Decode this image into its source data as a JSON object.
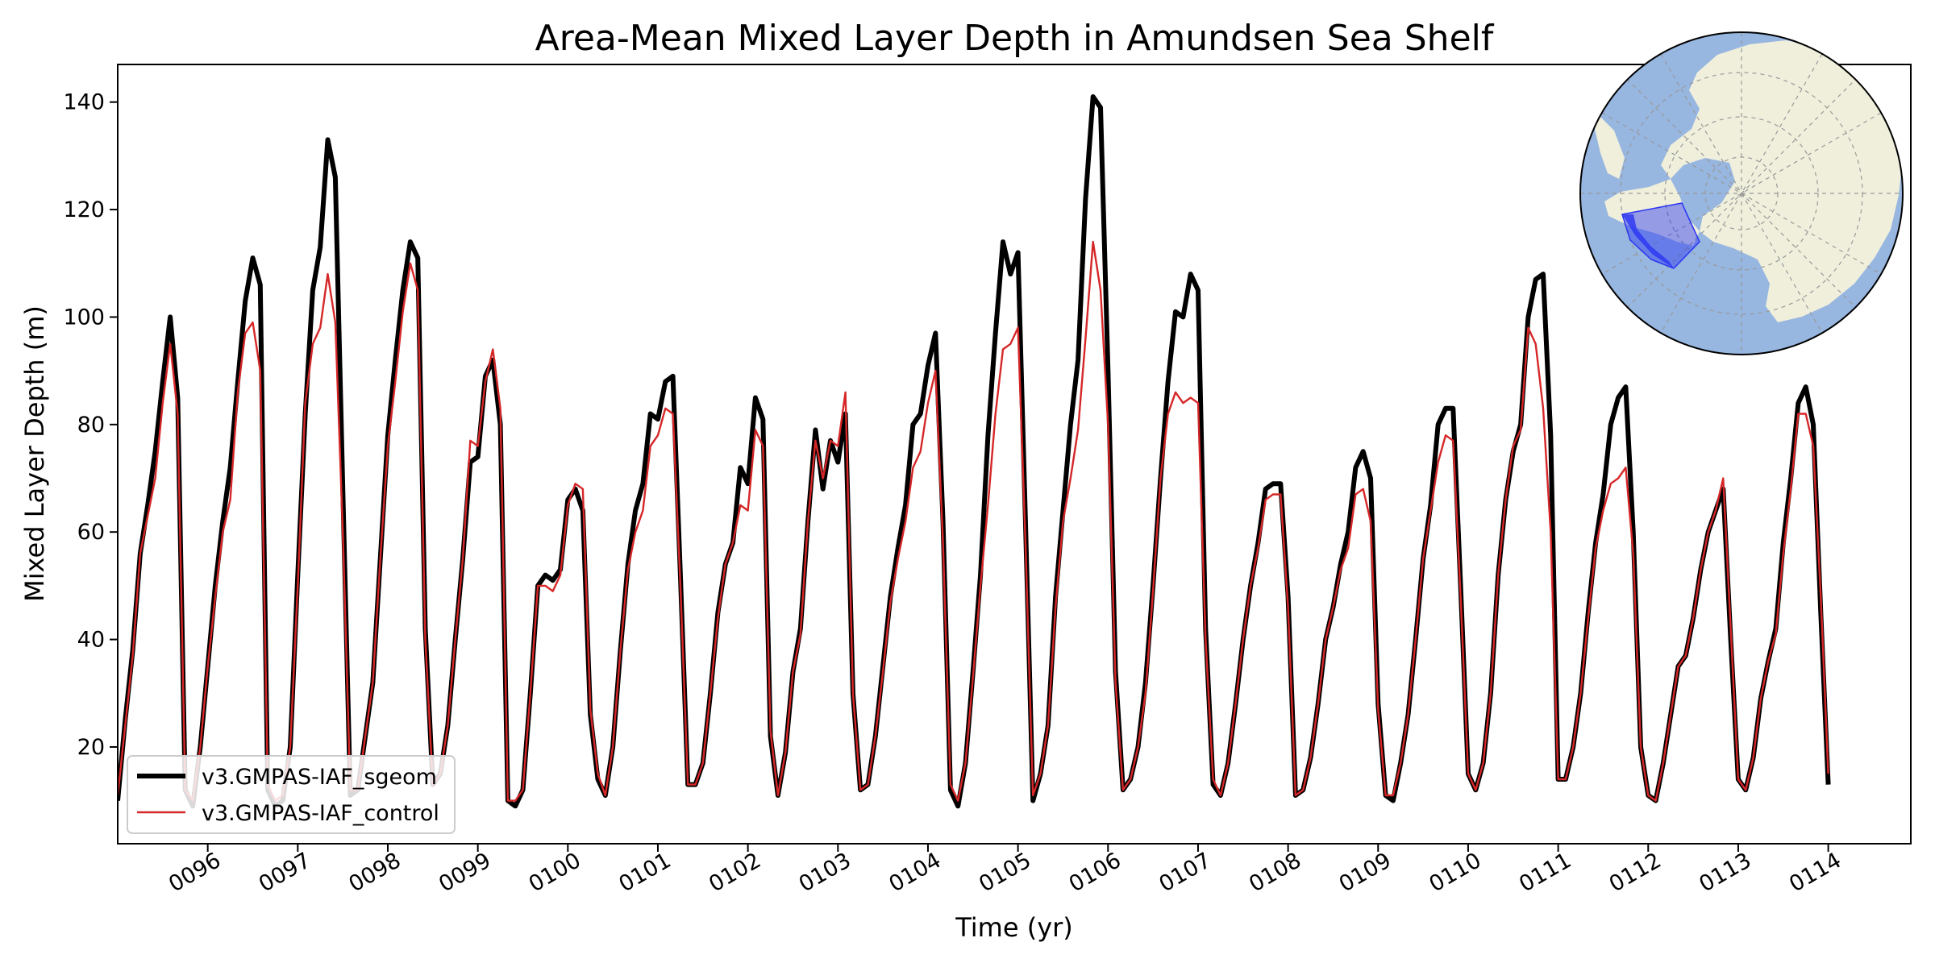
{
  "chart_data": {
    "type": "line",
    "title": "Area-Mean Mixed Layer Depth in Amundsen Sea Shelf",
    "xlabel": "Time (yr)",
    "ylabel": "Mixed Layer Depth (m)",
    "xlim": [
      95.0,
      114.917
    ],
    "ylim": [
      2,
      147
    ],
    "x_start_year": 95,
    "points_per_year": 12,
    "x_ticks": [
      96,
      97,
      98,
      99,
      100,
      101,
      102,
      103,
      104,
      105,
      106,
      107,
      108,
      109,
      110,
      111,
      112,
      113,
      114
    ],
    "x_tick_labels": [
      "0096",
      "0097",
      "0098",
      "0099",
      "0100",
      "0101",
      "0102",
      "0103",
      "0104",
      "0105",
      "0106",
      "0107",
      "0108",
      "0109",
      "0110",
      "0111",
      "0112",
      "0113",
      "0114"
    ],
    "y_ticks": [
      20,
      40,
      60,
      80,
      100,
      120,
      140
    ],
    "y_tick_labels": [
      "20",
      "40",
      "60",
      "80",
      "100",
      "120",
      "140"
    ],
    "grid": false,
    "legend_position": "lower-left",
    "series": [
      {
        "name": "v3.GMPAS-IAF_sgeom",
        "color": "#000000",
        "values": [
          10,
          25,
          38,
          56,
          65,
          75,
          88,
          100,
          85,
          12,
          9,
          20,
          35,
          50,
          62,
          72,
          88,
          103,
          111,
          106,
          12,
          9,
          10,
          20,
          52,
          82,
          105,
          113,
          133,
          126,
          68,
          11,
          12,
          22,
          32,
          55,
          78,
          92,
          105,
          114,
          111,
          42,
          13,
          15,
          24,
          40,
          55,
          73,
          74,
          89,
          92,
          80,
          10,
          9,
          12,
          30,
          50,
          52,
          51,
          53,
          66,
          68,
          64,
          26,
          14,
          11,
          20,
          38,
          54,
          64,
          69,
          82,
          81,
          88,
          89,
          52,
          13,
          13,
          17,
          30,
          45,
          54,
          58,
          72,
          69,
          85,
          81,
          22,
          11,
          19,
          34,
          42,
          62,
          79,
          68,
          77,
          73,
          82,
          30,
          12,
          13,
          22,
          35,
          48,
          57,
          65,
          80,
          82,
          91,
          97,
          62,
          12,
          9,
          17,
          34,
          52,
          78,
          97,
          114,
          108,
          112,
          62,
          10,
          15,
          24,
          48,
          64,
          80,
          92,
          122,
          141,
          139,
          90,
          34,
          12,
          14,
          20,
          32,
          50,
          70,
          88,
          101,
          100,
          108,
          105,
          42,
          13,
          11,
          17,
          28,
          40,
          50,
          58,
          68,
          69,
          69,
          48,
          11,
          12,
          18,
          28,
          40,
          46,
          54,
          60,
          72,
          75,
          70,
          28,
          11,
          10,
          17,
          26,
          40,
          55,
          65,
          80,
          83,
          83,
          50,
          15,
          12,
          17,
          30,
          52,
          66,
          75,
          80,
          100,
          107,
          108,
          78,
          14,
          14,
          20,
          30,
          45,
          58,
          67,
          80,
          85,
          87,
          60,
          20,
          11,
          10,
          17,
          26,
          35,
          37,
          44,
          53,
          60,
          64,
          68,
          40,
          14,
          12,
          18,
          29,
          36,
          42,
          58,
          70,
          84,
          87,
          80,
          45,
          13
        ]
      },
      {
        "name": "v3.GMPAS-IAF_control",
        "color": "#d62728",
        "values": [
          11,
          24,
          37,
          56,
          63,
          70,
          84,
          95,
          82,
          12,
          10,
          20,
          35,
          48,
          60,
          66,
          86,
          97,
          99,
          90,
          13,
          10,
          11,
          20,
          50,
          84,
          95,
          98,
          108,
          99,
          60,
          12,
          12,
          22,
          32,
          55,
          76,
          88,
          101,
          110,
          105,
          40,
          13,
          15,
          24,
          40,
          55,
          77,
          76,
          88,
          94,
          83,
          10,
          10,
          12,
          30,
          50,
          50,
          49,
          52,
          65,
          69,
          68,
          27,
          15,
          11,
          20,
          38,
          53,
          60,
          64,
          76,
          78,
          83,
          82,
          50,
          13,
          13,
          17,
          30,
          44,
          54,
          58,
          65,
          64,
          79,
          76,
          23,
          11,
          19,
          34,
          41,
          62,
          77,
          70,
          77,
          76,
          86,
          30,
          12,
          13,
          22,
          34,
          47,
          55,
          62,
          72,
          75,
          84,
          90,
          58,
          13,
          10,
          17,
          33,
          50,
          65,
          82,
          94,
          95,
          98,
          58,
          11,
          15,
          24,
          46,
          62,
          70,
          79,
          96,
          114,
          105,
          80,
          32,
          12,
          14,
          20,
          30,
          49,
          70,
          82,
          86,
          84,
          85,
          84,
          40,
          14,
          11,
          17,
          28,
          40,
          50,
          57,
          66,
          67,
          67,
          46,
          11,
          12,
          18,
          28,
          40,
          46,
          53,
          57,
          67,
          68,
          62,
          27,
          11,
          11,
          17,
          26,
          40,
          55,
          64,
          73,
          78,
          77,
          48,
          15,
          12,
          17,
          30,
          52,
          66,
          76,
          79,
          98,
          95,
          83,
          60,
          14,
          14,
          20,
          30,
          44,
          57,
          64,
          69,
          70,
          72,
          56,
          20,
          11,
          10,
          17,
          26,
          35,
          37,
          44,
          53,
          60,
          64,
          70,
          42,
          14,
          12,
          18,
          29,
          36,
          41,
          56,
          68,
          82,
          82,
          76,
          48,
          15
        ]
      }
    ]
  },
  "inset_map": {
    "ocean_color": "#97b6e0",
    "land_color": "#efefdc",
    "region_color": "#2b35f2"
  }
}
